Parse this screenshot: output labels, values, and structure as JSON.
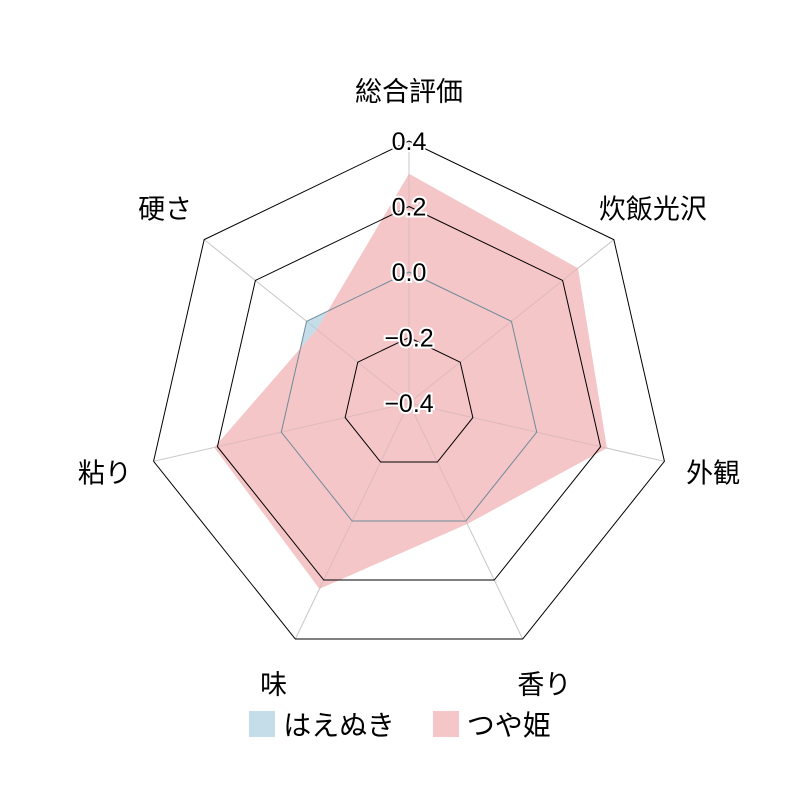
{
  "chart_data": {
    "type": "radar",
    "categories": [
      "総合評価",
      "炊飯光沢",
      "外観",
      "香り",
      "味",
      "粘り",
      "硬さ"
    ],
    "rlim": [
      -0.4,
      0.4
    ],
    "ticks": [
      "0.4",
      "0.2",
      "0.0",
      "−0.2",
      "−0.4"
    ],
    "tick_values": [
      0.4,
      0.2,
      0.0,
      -0.2,
      -0.4
    ],
    "series": [
      {
        "name": "はえぬき",
        "color": "#c5dde9",
        "values": [
          0.0,
          0.0,
          0.0,
          0.0,
          0.0,
          0.0,
          0.0
        ]
      },
      {
        "name": "つや姫",
        "color": "#f5c6c8",
        "values": [
          0.3,
          0.26,
          0.22,
          0.01,
          0.23,
          0.21,
          -0.04
        ]
      }
    ],
    "legend": "bottom"
  }
}
